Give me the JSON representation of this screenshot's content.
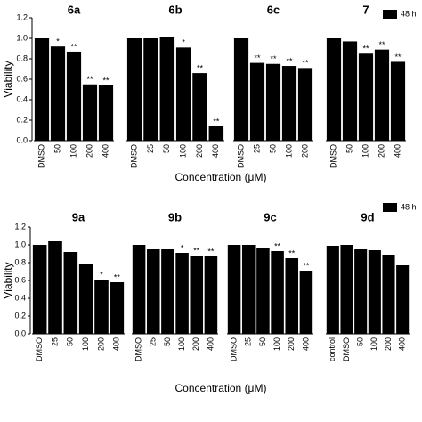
{
  "chart_data": [
    {
      "type": "bar",
      "ylabel": "Viability",
      "xlabel": "Concentration (μM)",
      "legend": "48 h",
      "color": "#000000",
      "ylim": [
        0,
        1.2
      ],
      "yticks": [
        {
          "value": 0,
          "label": "0.0"
        },
        {
          "value": 0.2,
          "label": "0.2"
        },
        {
          "value": 0.4,
          "label": "0.4"
        },
        {
          "value": 0.6,
          "label": "0.6"
        },
        {
          "value": 0.8,
          "label": "0.8"
        },
        {
          "value": 1.0,
          "label": "1.0"
        },
        {
          "value": 1.2,
          "label": "1.2"
        }
      ],
      "groups": [
        {
          "name": "6a",
          "categories": [
            "DMSO",
            "50",
            "100",
            "200",
            "400"
          ],
          "values": [
            1.0,
            0.92,
            0.87,
            0.55,
            0.54
          ],
          "significance": [
            null,
            "*",
            "**",
            "**",
            "**"
          ]
        },
        {
          "name": "6b",
          "categories": [
            "DMSO",
            "25",
            "50",
            "100",
            "200",
            "400"
          ],
          "values": [
            1.0,
            1.0,
            1.01,
            0.91,
            0.66,
            0.14
          ],
          "significance": [
            null,
            null,
            null,
            "*",
            "**",
            "**"
          ]
        },
        {
          "name": "6c",
          "categories": [
            "DMSO",
            "25",
            "50",
            "100",
            "200"
          ],
          "values": [
            1.0,
            0.76,
            0.75,
            0.73,
            0.71
          ],
          "significance": [
            null,
            "**",
            "**",
            "**",
            "**"
          ]
        },
        {
          "name": "7",
          "categories": [
            "DMSO",
            "50",
            "100",
            "200",
            "400"
          ],
          "values": [
            1.0,
            0.97,
            0.85,
            0.89,
            0.77
          ],
          "significance": [
            null,
            null,
            "**",
            "**",
            "**"
          ]
        }
      ]
    },
    {
      "type": "bar",
      "ylabel": "Viability",
      "xlabel": "Concentration (μM)",
      "legend": "48 h",
      "color": "#000000",
      "ylim": [
        0,
        1.2
      ],
      "yticks": [
        {
          "value": 0,
          "label": "0.0"
        },
        {
          "value": 0.2,
          "label": "0.2"
        },
        {
          "value": 0.4,
          "label": "0.4"
        },
        {
          "value": 0.6,
          "label": "0.6"
        },
        {
          "value": 0.8,
          "label": "0.8"
        },
        {
          "value": 1.0,
          "label": "1.0"
        },
        {
          "value": 1.2,
          "label": "1.2"
        }
      ],
      "groups": [
        {
          "name": "9a",
          "categories": [
            "DMSO",
            "25",
            "50",
            "100",
            "200",
            "400"
          ],
          "values": [
            1.0,
            1.04,
            0.92,
            0.78,
            0.61,
            0.58
          ],
          "significance": [
            null,
            null,
            null,
            null,
            "*",
            "**"
          ]
        },
        {
          "name": "9b",
          "categories": [
            "DMSO",
            "25",
            "50",
            "100",
            "200",
            "400"
          ],
          "values": [
            1.0,
            0.95,
            0.95,
            0.91,
            0.88,
            0.87
          ],
          "significance": [
            null,
            null,
            null,
            "*",
            "**",
            "**"
          ]
        },
        {
          "name": "9c",
          "categories": [
            "DMSO",
            "25",
            "50",
            "100",
            "200",
            "400"
          ],
          "values": [
            1.0,
            1.0,
            0.96,
            0.93,
            0.85,
            0.71
          ],
          "significance": [
            null,
            null,
            null,
            "**",
            "**",
            "**"
          ]
        },
        {
          "name": "9d",
          "categories": [
            "control",
            "DMSO",
            "50",
            "100",
            "200",
            "400"
          ],
          "values": [
            0.99,
            1.0,
            0.95,
            0.94,
            0.89,
            0.77
          ],
          "significance": [
            null,
            null,
            null,
            null,
            null,
            null
          ]
        }
      ]
    }
  ]
}
